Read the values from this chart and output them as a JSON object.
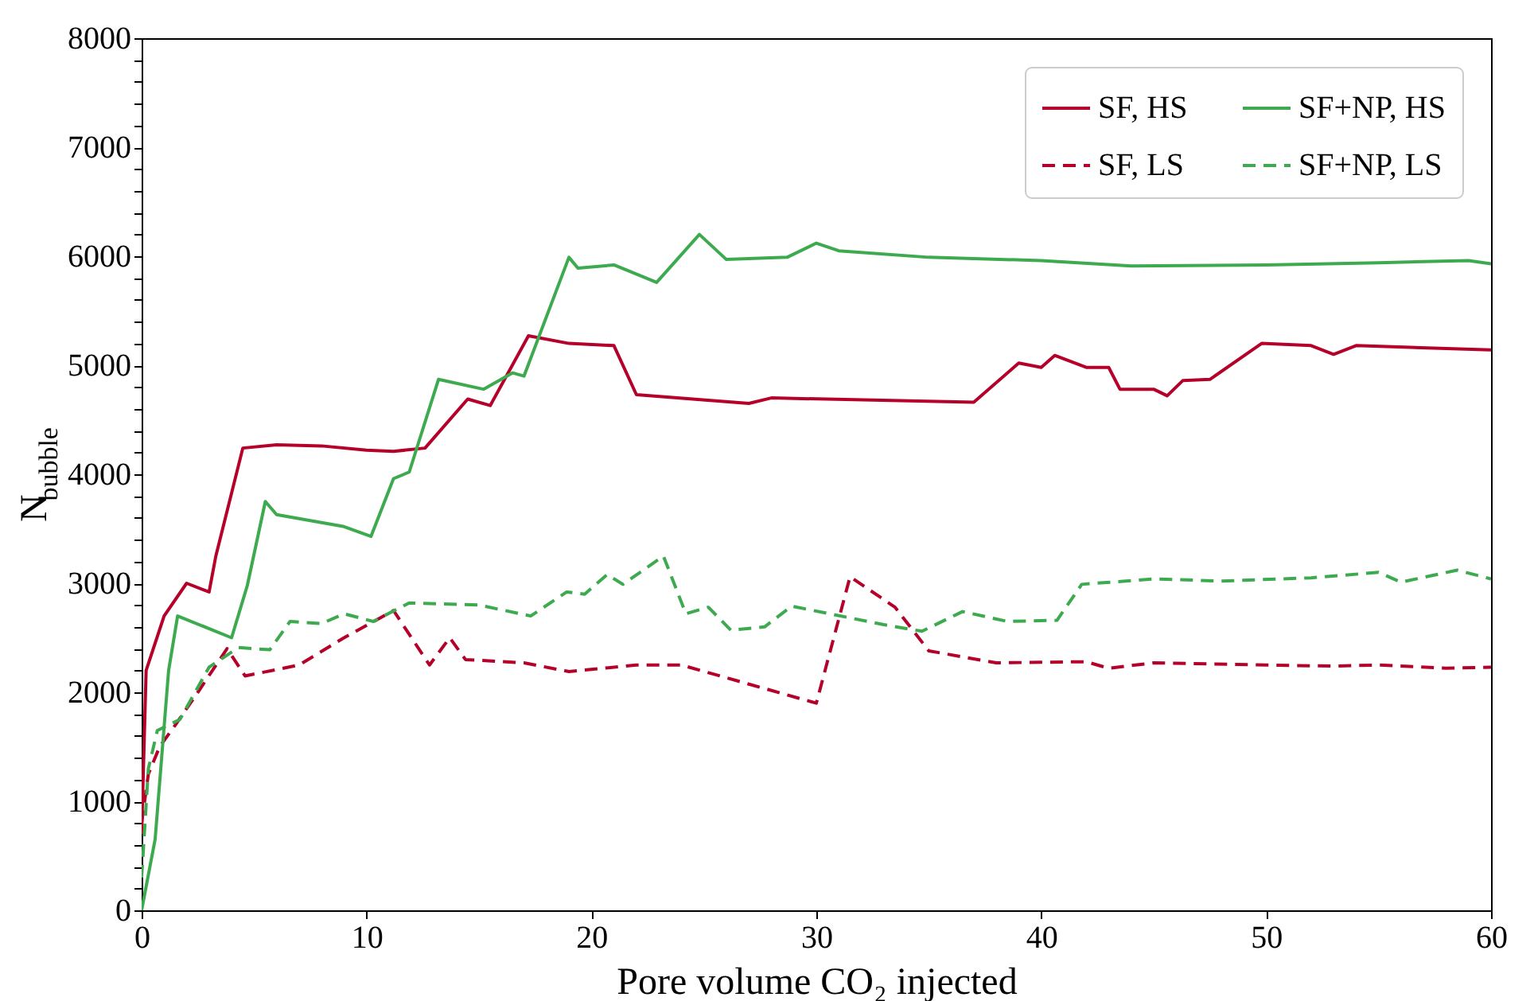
{
  "chart_data": {
    "type": "line",
    "xlabel": "Pore volume CO₂ injected",
    "ylabel": "N$_{bubble}$",
    "xlim": [
      0,
      60
    ],
    "xticks": [
      0,
      10,
      20,
      30,
      40,
      50,
      60
    ],
    "ylim": [
      0,
      8000
    ],
    "yticks": [
      0,
      {
        "value": 200,
        "label": null
      },
      {
        "value": 400,
        "label": null
      },
      {
        "value": 600,
        "label": null
      },
      {
        "value": 800,
        "label": null
      },
      1000,
      {
        "value": 1200,
        "label": null
      },
      {
        "value": 1400,
        "label": null
      },
      {
        "value": 1600,
        "label": null
      },
      {
        "value": 1800,
        "label": null
      },
      2000,
      {
        "value": 2200,
        "label": null
      },
      {
        "value": 2400,
        "label": null
      },
      {
        "value": 2600,
        "label": null
      },
      {
        "value": 2800,
        "label": null
      },
      3000,
      {
        "value": 3200,
        "label": null
      },
      {
        "value": 3400,
        "label": null
      },
      {
        "value": 3600,
        "label": null
      },
      {
        "value": 3800,
        "label": null
      },
      4000,
      {
        "value": 4200,
        "label": null
      },
      {
        "value": 4400,
        "label": null
      },
      {
        "value": 4600,
        "label": null
      },
      {
        "value": 4800,
        "label": null
      },
      5000,
      {
        "value": 5200,
        "label": null
      },
      {
        "value": 5400,
        "label": null
      },
      {
        "value": 5600,
        "label": null
      },
      {
        "value": 5800,
        "label": null
      },
      6000,
      {
        "value": 6200,
        "label": null
      },
      {
        "value": 6400,
        "label": null
      },
      {
        "value": 6600,
        "label": null
      },
      {
        "value": 6800,
        "label": null
      },
      7000,
      {
        "value": 7200,
        "label": null
      },
      {
        "value": 7400,
        "label": null
      },
      {
        "value": 7600,
        "label": null
      },
      {
        "value": 7800,
        "label": null
      },
      8000
    ],
    "grid": false,
    "legend": "top right",
    "marker": "none",
    "series": [
      {
        "name": "SF, HS",
        "color": "#b5002a",
        "line_style": "solid",
        "x": [
          0,
          0.2,
          1,
          2,
          3,
          3.3,
          4.5,
          6,
          8,
          10,
          11.2,
          12.6,
          14.5,
          15.5,
          17.2,
          19,
          21,
          22,
          27,
          28,
          37,
          39,
          40,
          40.6,
          42,
          43,
          43.5,
          45,
          45.6,
          46.3,
          47.5,
          49.8,
          52,
          53,
          54,
          60
        ],
        "values": [
          700,
          2200,
          2700,
          3000,
          2920,
          3250,
          4240,
          4270,
          4260,
          4220,
          4210,
          4240,
          4690,
          4630,
          5270,
          5200,
          5180,
          4730,
          4650,
          4700,
          4660,
          5020,
          4980,
          5090,
          4980,
          4980,
          4780,
          4780,
          4720,
          4860,
          4870,
          5200,
          5180,
          5100,
          5180,
          5140
        ]
      },
      {
        "name": "SF, LS",
        "color": "#b5002a",
        "line_style": "dashed",
        "x": [
          0,
          0.3,
          0.8,
          1.5,
          2.5,
          3.8,
          4.6,
          7,
          9,
          11.2,
          12.8,
          13.7,
          14.4,
          17,
          19,
          22,
          24,
          30,
          31.5,
          33.5,
          35,
          38,
          42,
          43,
          45,
          50,
          53,
          55,
          58,
          60
        ],
        "values": [
          800,
          1250,
          1500,
          1700,
          2000,
          2400,
          2150,
          2250,
          2500,
          2750,
          2250,
          2500,
          2300,
          2270,
          2190,
          2250,
          2250,
          1900,
          3060,
          2780,
          2380,
          2270,
          2280,
          2220,
          2270,
          2250,
          2240,
          2250,
          2220,
          2230
        ]
      },
      {
        "name": "SF+NP, HS",
        "color": "#3daa4f",
        "line_style": "solid",
        "x": [
          0,
          0.6,
          1.2,
          1.6,
          4,
          4.7,
          5.5,
          6,
          9,
          10.2,
          11.2,
          11.9,
          13.2,
          15.2,
          16.5,
          17,
          19,
          19.4,
          21,
          22.9,
          24.8,
          26,
          28.7,
          30,
          31,
          35,
          40,
          44,
          50,
          55,
          59,
          60
        ],
        "values": [
          0,
          650,
          2200,
          2700,
          2500,
          2980,
          3750,
          3630,
          3520,
          3430,
          3960,
          4020,
          4870,
          4780,
          4930,
          4900,
          5990,
          5890,
          5920,
          5760,
          6200,
          5970,
          5990,
          6120,
          6050,
          5990,
          5960,
          5910,
          5920,
          5940,
          5960,
          5930
        ]
      },
      {
        "name": "SF+NP, LS",
        "color": "#3daa4f",
        "line_style": "dashed",
        "x": [
          0,
          0.3,
          0.7,
          1.7,
          3,
          4.3,
          5.7,
          6.6,
          8,
          9,
          10.3,
          11.9,
          15,
          17.3,
          18.9,
          19.7,
          20.7,
          21.4,
          23.2,
          24.2,
          25.2,
          26.2,
          27.7,
          28.9,
          33,
          34.7,
          36.5,
          38.5,
          40.7,
          41.8,
          45,
          48,
          52,
          55,
          56,
          58.5,
          60
        ],
        "values": [
          300,
          1300,
          1650,
          1750,
          2230,
          2410,
          2390,
          2650,
          2630,
          2720,
          2650,
          2820,
          2800,
          2700,
          2920,
          2900,
          3080,
          2990,
          3250,
          2720,
          2780,
          2570,
          2600,
          2790,
          2620,
          2560,
          2740,
          2650,
          2660,
          2990,
          3040,
          3020,
          3050,
          3100,
          3010,
          3120,
          3040
        ]
      }
    ]
  }
}
